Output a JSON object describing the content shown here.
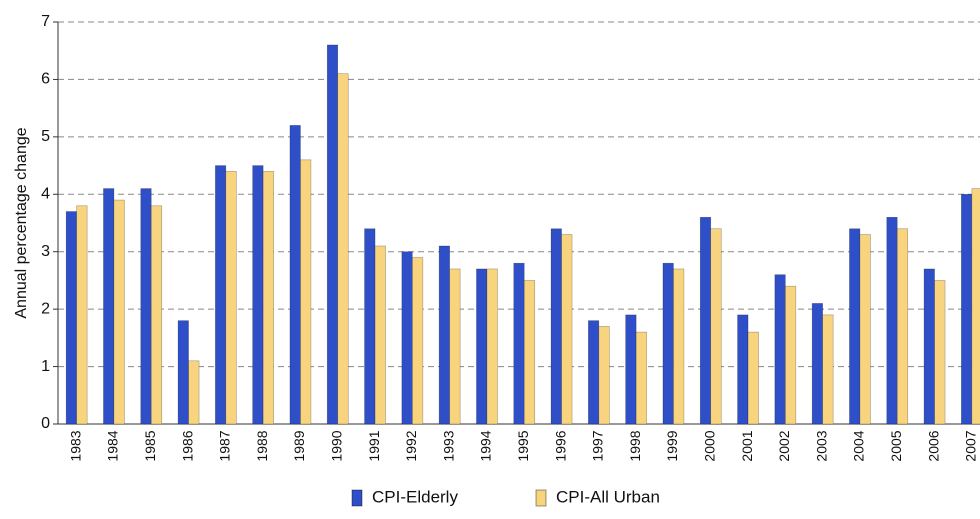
{
  "chart_data": {
    "type": "bar",
    "y_label": "Annual percentage change",
    "categories": [
      "1983",
      "1984",
      "1985",
      "1986",
      "1987",
      "1988",
      "1989",
      "1990",
      "1991",
      "1992",
      "1993",
      "1994",
      "1995",
      "1996",
      "1997",
      "1998",
      "1999",
      "2000",
      "2001",
      "2002",
      "2003",
      "2004",
      "2005",
      "2006",
      "2007"
    ],
    "series": [
      {
        "name": "CPI-Elderly",
        "color": "#2f4fc8",
        "values": [
          3.7,
          4.1,
          4.1,
          1.8,
          4.5,
          4.5,
          5.2,
          6.6,
          3.4,
          3.0,
          3.1,
          2.7,
          2.8,
          3.4,
          1.8,
          1.9,
          2.8,
          3.6,
          1.9,
          2.6,
          2.1,
          3.4,
          3.6,
          2.7,
          4.0
        ]
      },
      {
        "name": "CPI-All Urban",
        "color": "#f8d47e",
        "values": [
          3.8,
          3.9,
          3.8,
          1.1,
          4.4,
          4.4,
          4.6,
          6.1,
          3.1,
          2.9,
          2.7,
          2.7,
          2.5,
          3.3,
          1.7,
          1.6,
          2.7,
          3.4,
          1.6,
          2.4,
          1.9,
          3.3,
          3.4,
          2.5,
          4.1
        ]
      }
    ],
    "ylim": [
      0,
      7
    ],
    "yticks": [
      0,
      1,
      2,
      3,
      4,
      5,
      6,
      7
    ],
    "grid": true,
    "legend": "bottom"
  }
}
